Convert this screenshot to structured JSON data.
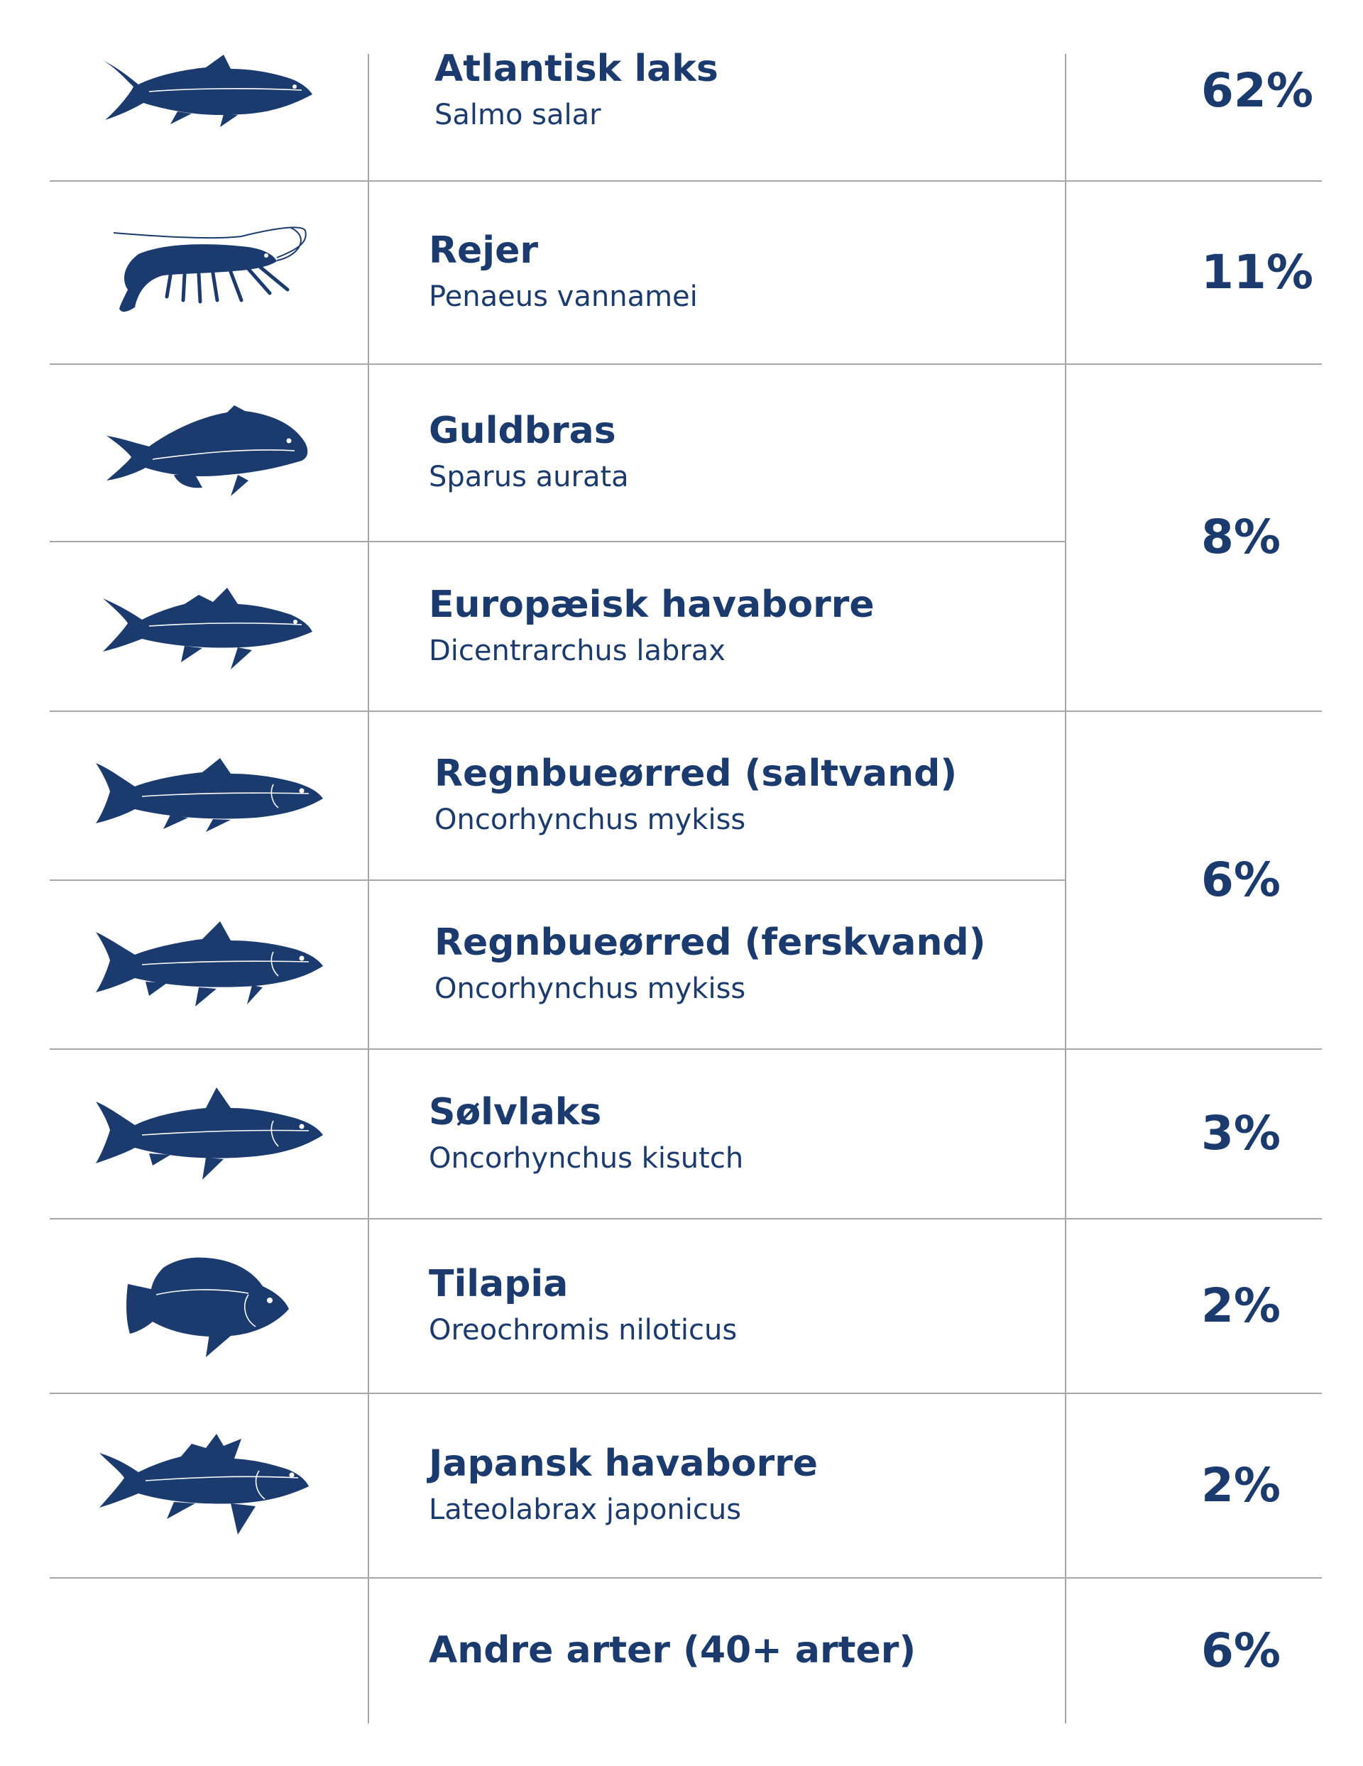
{
  "colors": {
    "ink": "#1b3b6f",
    "rule": "#a6a6a6",
    "background": "#ffffff"
  },
  "rows": [
    {
      "icon": "salmon-icon",
      "common": "Atlantisk laks",
      "latin": "Salmo salar"
    },
    {
      "icon": "shrimp-icon",
      "common": "Rejer",
      "latin": "Penaeus vannamei"
    },
    {
      "icon": "sea-bream-icon",
      "common": "Guldbras",
      "latin": "Sparus aurata"
    },
    {
      "icon": "sea-bass-icon",
      "common": "Europæisk havaborre",
      "latin": "Dicentrarchus labrax"
    },
    {
      "icon": "rainbow-trout-icon",
      "common": "Regnbueørred (saltvand)",
      "latin": "Oncorhynchus mykiss"
    },
    {
      "icon": "rainbow-trout-icon",
      "common": "Regnbueørred (ferskvand)",
      "latin": "Oncorhynchus mykiss"
    },
    {
      "icon": "coho-salmon-icon",
      "common": "Sølvlaks",
      "latin": "Oncorhynchus kisutch"
    },
    {
      "icon": "tilapia-icon",
      "common": "Tilapia",
      "latin": "Oreochromis niloticus"
    },
    {
      "icon": "japanese-sea-bass-icon",
      "common": "Japansk havaborre",
      "latin": "Lateolabrax japonicus"
    },
    {
      "icon": "",
      "common": "Andre arter (40+ arter)",
      "latin": ""
    }
  ],
  "percentages": [
    "62%",
    "11%",
    "8%",
    "6%",
    "3%",
    "2%",
    "2%",
    "6%"
  ]
}
